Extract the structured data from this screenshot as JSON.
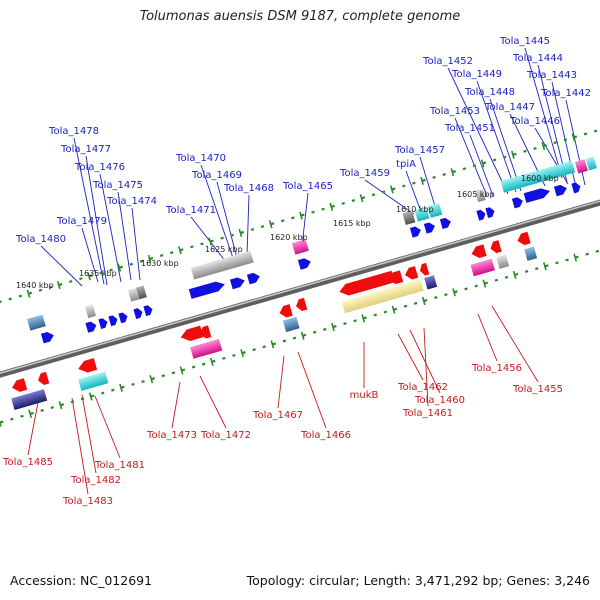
{
  "title": "Tolumonas auensis DSM 9187, complete genome",
  "footer": {
    "accession": "Accession: NC_012691",
    "summary": "Topology: circular; Length: 3,471,292 bp; Genes: 3,246"
  },
  "colors": {
    "forward_label": "#1b22c4",
    "reverse_label": "#c41b1b",
    "backbone": "#7d7d7d",
    "tick": "#2a8a2a"
  },
  "scale_marks": [
    "1640 kbp",
    "1635 kbp",
    "1630 kbp",
    "1625 kbp",
    "1620 kbp",
    "1615 kbp",
    "1610 kbp",
    "1605 kbp",
    "1600 kbp"
  ],
  "forward_genes": [
    "Tola_1445",
    "Tola_1444",
    "Tola_1443",
    "Tola_1442",
    "Tola_1452",
    "Tola_1449",
    "Tola_1448",
    "Tola_1447",
    "Tola_1453",
    "Tola_1451",
    "Tola_1446",
    "Tola_1457",
    "tpiA",
    "Tola_1459",
    "Tola_1465",
    "Tola_1470",
    "Tola_1469",
    "Tola_1468",
    "Tola_1471",
    "Tola_1478",
    "Tola_1477",
    "Tola_1476",
    "Tola_1475",
    "Tola_1474",
    "Tola_1479",
    "Tola_1480"
  ],
  "reverse_genes": [
    "Tola_1485",
    "Tola_1482",
    "Tola_1483",
    "Tola_1481",
    "Tola_1473",
    "Tola_1472",
    "Tola_1467",
    "Tola_1466",
    "mukB",
    "Tola_1462",
    "Tola_1460",
    "Tola_1461",
    "Tola_1456",
    "Tola_1455"
  ]
}
